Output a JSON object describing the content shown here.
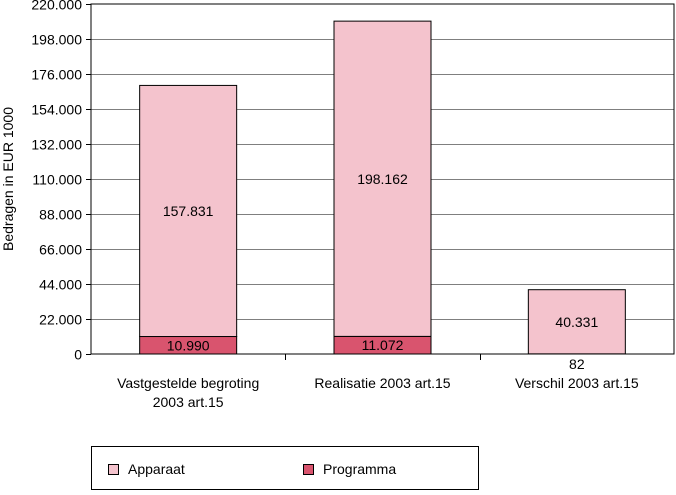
{
  "chart_data": {
    "type": "bar",
    "stacked": true,
    "ylabel": "Bedragen in EUR 1000",
    "ylim": [
      0,
      220000
    ],
    "yticks": [
      {
        "value": 0,
        "label": "0"
      },
      {
        "value": 22000,
        "label": "22.000"
      },
      {
        "value": 44000,
        "label": "44.000"
      },
      {
        "value": 66000,
        "label": "66.000"
      },
      {
        "value": 88000,
        "label": "88.000"
      },
      {
        "value": 110000,
        "label": "110.000"
      },
      {
        "value": 132000,
        "label": "132.000"
      },
      {
        "value": 154000,
        "label": "154.000"
      },
      {
        "value": 176000,
        "label": "176.000"
      },
      {
        "value": 198000,
        "label": "198.000"
      },
      {
        "value": 220000,
        "label": "220.000"
      }
    ],
    "categories": [
      [
        "Vastgestelde begroting",
        "2003 art.15"
      ],
      [
        "Realisatie 2003 art.15"
      ],
      [
        "Verschil 2003 art.15"
      ]
    ],
    "series": [
      {
        "name": "Programma",
        "color": "#d9546e",
        "values": [
          10990,
          11072,
          82
        ],
        "labels": [
          "10.990",
          "11.072",
          "82"
        ]
      },
      {
        "name": "Apparaat",
        "color": "#f4c3cd",
        "values": [
          157831,
          198162,
          40331
        ],
        "labels": [
          "157.831",
          "198.162",
          "40.331"
        ]
      }
    ],
    "legend": {
      "position": "bottom",
      "items": [
        "Apparaat",
        "Programma"
      ]
    },
    "grid": true
  }
}
